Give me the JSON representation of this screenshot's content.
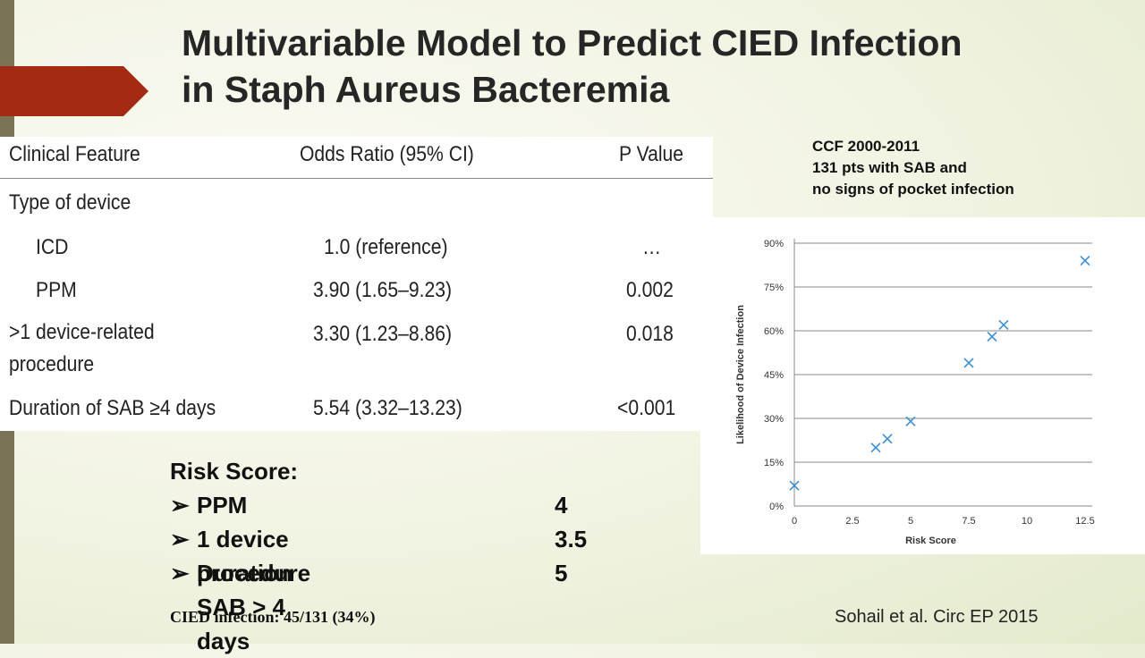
{
  "header": {
    "title": "Multivariable Model to Predict CIED Infection in Staph Aureus Bacteremia"
  },
  "table": {
    "columns": [
      "Clinical Feature",
      "Odds Ratio (95% CI)",
      "P Value"
    ],
    "rows": [
      {
        "feature": "Type of device"
      },
      {
        "feature": "ICD",
        "odds_ratio": "1.0 (reference)",
        "p_value": "…",
        "indent": true
      },
      {
        "feature": "PPM",
        "odds_ratio": "3.90 (1.65–9.23)",
        "p_value": "0.002",
        "indent": true
      },
      {
        "feature": ">1 device-related procedure",
        "odds_ratio": "3.30 (1.23–8.86)",
        "p_value": "0.018"
      },
      {
        "feature": "Duration of SAB ≥4 days",
        "odds_ratio": "5.54 (3.32–13.23)",
        "p_value": "<0.001"
      }
    ]
  },
  "study": {
    "lines": [
      "CCF 2000-2011",
      "131 pts with SAB and",
      "no signs of pocket infection"
    ]
  },
  "risk_score": {
    "title": "Risk Score:",
    "items": [
      {
        "label": "PPM",
        "points": 4
      },
      {
        "label": "1 device procedure",
        "points": 3.5
      },
      {
        "label": "Duration SAB > 4 days",
        "points": 5
      }
    ]
  },
  "footer": {
    "note": "CIED infection: 45/131 (34%)",
    "citation": "Sohail et al. Circ EP 2015"
  },
  "chart_data": {
    "type": "scatter",
    "x_label": "Risk Score",
    "y_label": "Likelihood of Device Infection",
    "x": [
      0,
      3.5,
      4,
      5,
      7.5,
      8.5,
      9,
      12.5
    ],
    "values": [
      7,
      20,
      23,
      29,
      49,
      58,
      62,
      84
    ],
    "color": "#3d8fd1",
    "xlim": [
      0,
      12.5
    ],
    "xticks": [
      0,
      2.5,
      5,
      7.5,
      10,
      12.5
    ],
    "ylim": [
      0,
      90
    ],
    "yticks": [
      {
        "value": 0,
        "label": "0%"
      },
      {
        "value": 15,
        "label": "15%"
      },
      {
        "value": 30,
        "label": "30%"
      },
      {
        "value": 45,
        "label": "45%"
      },
      {
        "value": 60,
        "label": "60%"
      },
      {
        "value": 75,
        "label": "75%"
      },
      {
        "value": 90,
        "label": "90%"
      }
    ],
    "grid": true
  }
}
